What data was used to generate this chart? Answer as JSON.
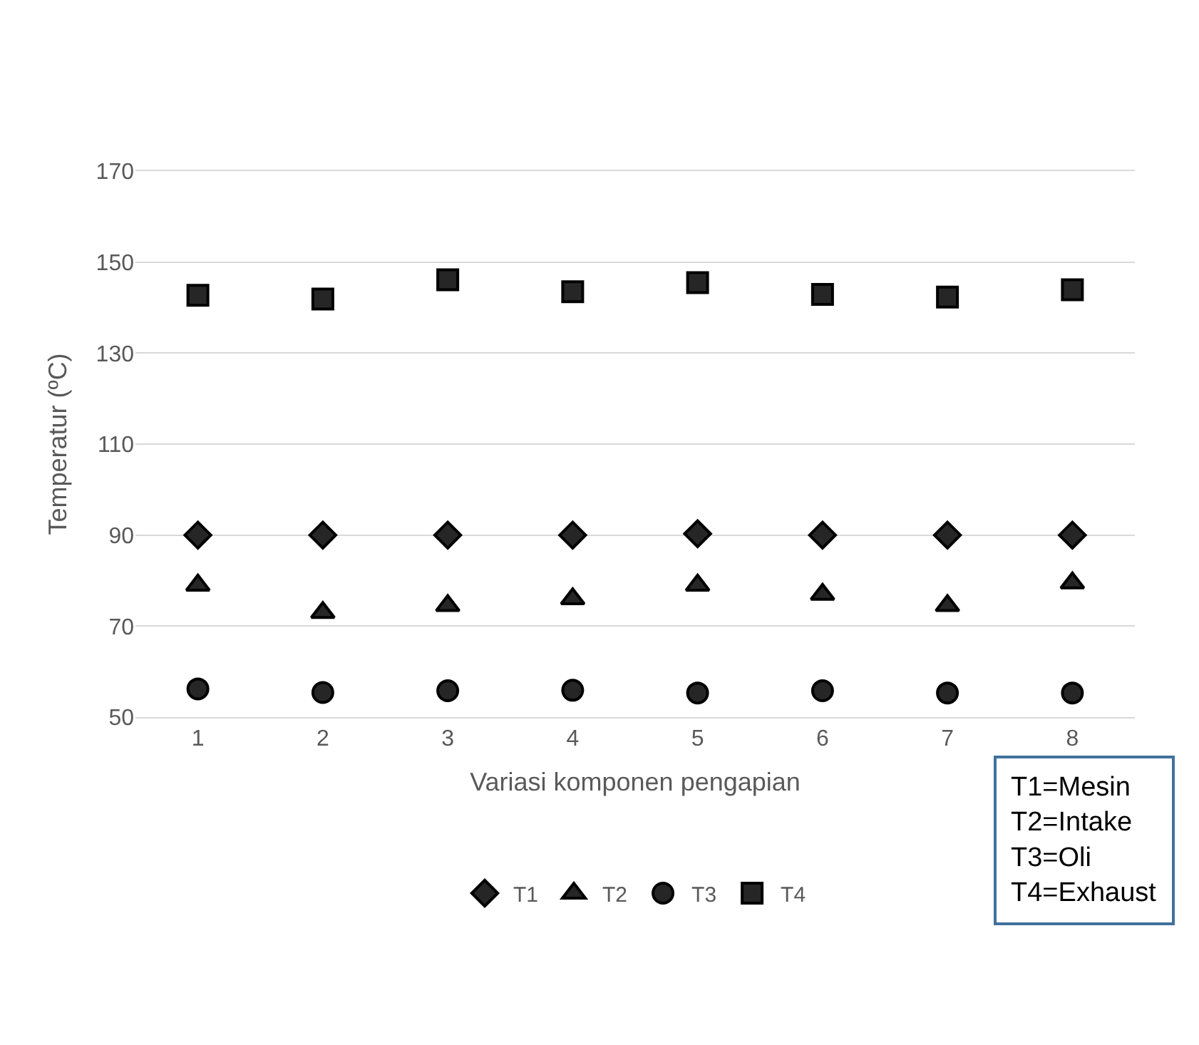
{
  "chart_data": {
    "type": "scatter",
    "xlabel": "Variasi komponen pengapian",
    "ylabel": "Temperatur (ºC)",
    "categories": [
      "1",
      "2",
      "3",
      "4",
      "5",
      "6",
      "7",
      "8"
    ],
    "series": [
      {
        "name": "T1",
        "color": "#262626",
        "marker": "diamond",
        "values": [
          90,
          90,
          90,
          90,
          90.3,
          90,
          90,
          90
        ]
      },
      {
        "name": "T2",
        "color": "#262626",
        "marker": "triangle",
        "values": [
          79,
          73,
          74.5,
          76,
          79,
          77,
          74.5,
          79.5
        ]
      },
      {
        "name": "T3",
        "color": "#262626",
        "marker": "circle",
        "values": [
          56.2,
          55.4,
          55.8,
          55.9,
          55.3,
          55.8,
          55.3,
          55.3
        ]
      },
      {
        "name": "T4",
        "color": "#262626",
        "marker": "square",
        "values": [
          142.7,
          141.9,
          146.1,
          143.5,
          145.5,
          142.9,
          142.3,
          143.9
        ]
      }
    ],
    "ylim": [
      50,
      170
    ],
    "yticks": [
      50,
      70,
      90,
      110,
      130,
      150,
      170
    ],
    "grid": "y",
    "legend": "bottom",
    "annotations": [
      "T1=Mesin\nT2=Intake\nT3=Oli\nT4=Exhaust"
    ]
  }
}
